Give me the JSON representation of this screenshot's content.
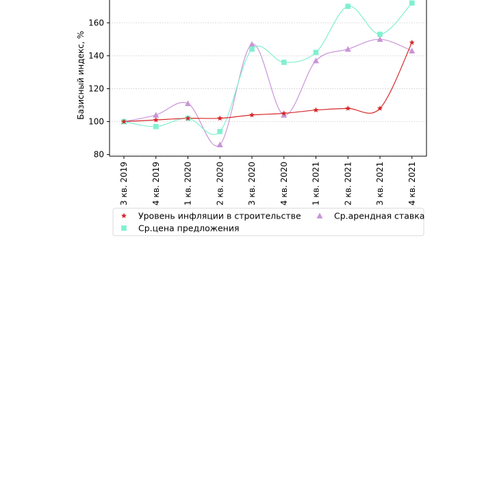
{
  "chart_data": {
    "type": "line",
    "ylabel": "Базисный индекс, %",
    "xlabel": "",
    "categories": [
      "3 кв. 2019",
      "4 кв. 2019",
      "1 кв. 2020",
      "2 кв. 2020",
      "3 кв. 2020",
      "4 кв. 2020",
      "1 кв. 2021",
      "2 кв. 2021",
      "3 кв. 2021",
      "4 кв. 2021"
    ],
    "ylim": [
      79,
      178
    ],
    "yticks": [
      80,
      100,
      120,
      140,
      160
    ],
    "grid": "horizontal dotted",
    "legend_position": "bottom",
    "series": [
      {
        "name": "Уровень инфляции в строительстве",
        "marker": "star",
        "color": "#d62728",
        "values": [
          100,
          101,
          102,
          102,
          104,
          105,
          107,
          108,
          108,
          148
        ]
      },
      {
        "name": "Ср.арендная ставка",
        "marker": "triangle",
        "color": "#c994d8",
        "values": [
          100,
          104,
          111,
          86,
          147,
          104,
          137,
          144,
          150,
          143
        ]
      },
      {
        "name": "Ср.цена предложения",
        "marker": "square",
        "color": "#80f0d0",
        "values": [
          100,
          97,
          102,
          94,
          144,
          136,
          142,
          170,
          153,
          172
        ]
      }
    ]
  }
}
